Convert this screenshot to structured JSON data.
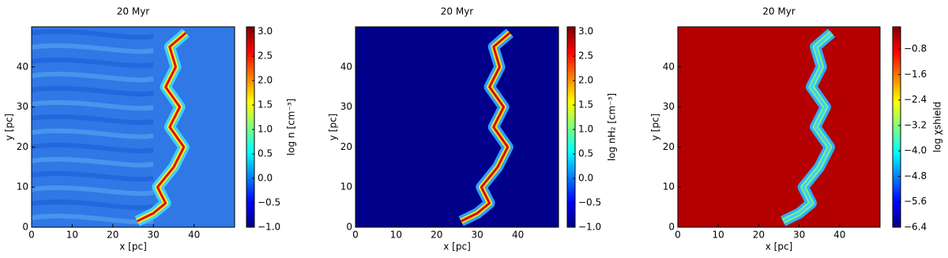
{
  "chart_data": [
    {
      "type": "heatmap",
      "title": "20 Myr",
      "xlabel": "x [pc]",
      "ylabel": "y [pc]",
      "xlim": [
        0,
        50
      ],
      "ylim": [
        0,
        50
      ],
      "xticks": [
        0,
        10,
        20,
        30,
        40
      ],
      "yticks": [
        0,
        10,
        20,
        30,
        40
      ],
      "colormap": "jet",
      "colorbar": {
        "label": "log n [cm⁻³]",
        "lim": [
          -1,
          3.1
        ],
        "ticks": [
          {
            "value": -1,
            "label": "−1.0"
          },
          {
            "value": -0.5,
            "label": "−0.5"
          },
          {
            "value": 0,
            "label": "0.0"
          },
          0.5,
          {
            "value": 1,
            "label": "1.0"
          },
          1.5,
          {
            "value": 2,
            "label": "2.0"
          },
          2.5,
          {
            "value": 3,
            "label": "3.0"
          }
        ]
      }
    },
    {
      "type": "heatmap",
      "title": "20 Myr",
      "xlabel": "x [pc]",
      "ylabel": "y [pc]",
      "xlim": [
        0,
        50
      ],
      "ylim": [
        0,
        50
      ],
      "xticks": [
        0,
        10,
        20,
        30,
        40
      ],
      "yticks": [
        0,
        10,
        20,
        30,
        40
      ],
      "colormap": "jet",
      "colorbar": {
        "label": "log nH₂ [cm⁻³]",
        "lim": [
          -1,
          3.1
        ],
        "ticks": [
          {
            "value": -1,
            "label": "−1.0"
          },
          {
            "value": -0.5,
            "label": "−0.5"
          },
          {
            "value": 0,
            "label": "0.0"
          },
          0.5,
          {
            "value": 1,
            "label": "1.0"
          },
          1.5,
          {
            "value": 2,
            "label": "2.0"
          },
          2.5,
          {
            "value": 3,
            "label": "3.0"
          }
        ]
      }
    },
    {
      "type": "heatmap",
      "title": "20 Myr",
      "xlabel": "x [pc]",
      "ylabel": "y [pc]",
      "xlim": [
        0,
        50
      ],
      "ylim": [
        0,
        50
      ],
      "xticks": [
        0,
        10,
        20,
        30,
        40
      ],
      "yticks": [
        0,
        10,
        20,
        30,
        40
      ],
      "colormap": "jet",
      "colorbar": {
        "label": "log χshield",
        "lim": [
          -6.4,
          -0.1
        ],
        "ticks": [
          {
            "value": -6.4,
            "label": "−6.4"
          },
          {
            "value": -5.6,
            "label": "−5.6"
          },
          {
            "value": -4.8,
            "label": "−4.8"
          },
          {
            "value": -4,
            "label": "−4.0"
          },
          {
            "value": -3.2,
            "label": "−3.2"
          },
          {
            "value": -2.4,
            "label": "−2.4"
          },
          {
            "value": -1.6,
            "label": "−1.6"
          },
          {
            "value": -0.8,
            "label": "−0.8"
          }
        ]
      }
    }
  ]
}
